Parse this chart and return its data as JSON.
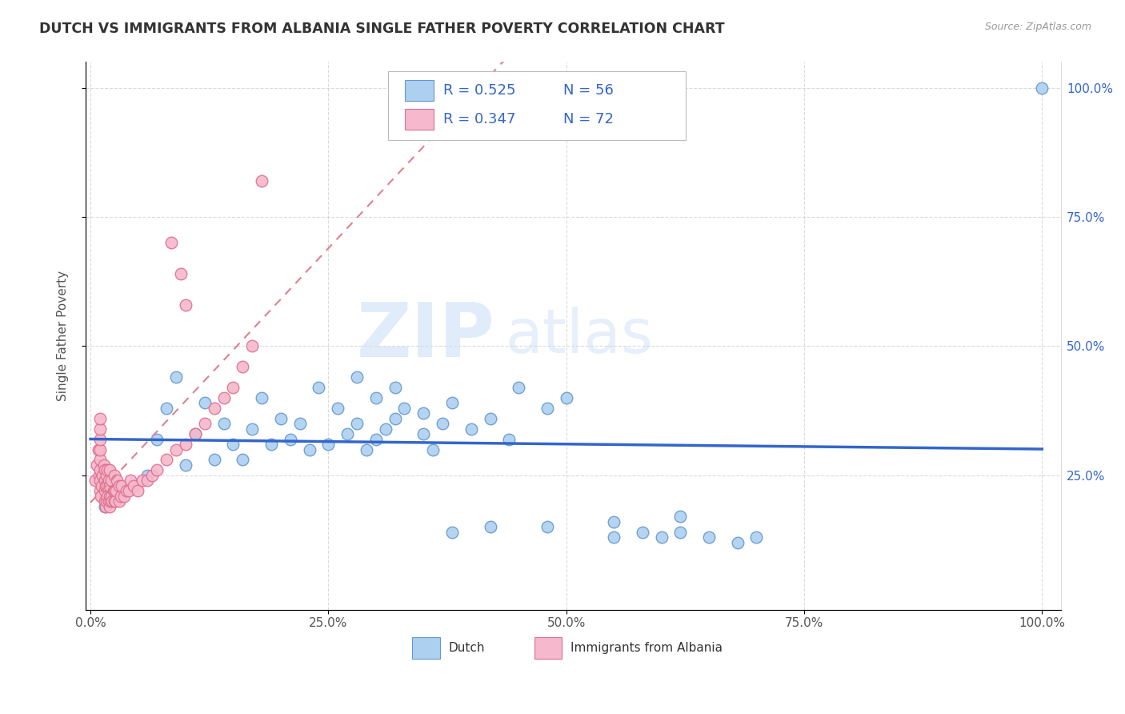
{
  "title": "DUTCH VS IMMIGRANTS FROM ALBANIA SINGLE FATHER POVERTY CORRELATION CHART",
  "source": "Source: ZipAtlas.com",
  "ylabel": "Single Father Poverty",
  "xtick_labels": [
    "0.0%",
    "25.0%",
    "50.0%",
    "75.0%",
    "100.0%"
  ],
  "xtick_positions": [
    0.0,
    0.25,
    0.5,
    0.75,
    1.0
  ],
  "ytick_labels": [
    "25.0%",
    "50.0%",
    "75.0%",
    "100.0%"
  ],
  "ytick_positions": [
    0.25,
    0.5,
    0.75,
    1.0
  ],
  "dutch_color": "#add0f0",
  "dutch_edge_color": "#6699cc",
  "albania_color": "#f5b8cc",
  "albania_edge_color": "#e07090",
  "dutch_R": 0.525,
  "dutch_N": 56,
  "albania_R": 0.347,
  "albania_N": 72,
  "legend_label_dutch": "Dutch",
  "legend_label_albania": "Immigrants from Albania",
  "watermark_zip": "ZIP",
  "watermark_atlas": "atlas",
  "dutch_line_color": "#3366cc",
  "albania_line_color": "#e08090",
  "grid_color": "#cccccc",
  "background_color": "#ffffff",
  "stat_color": "#3366cc",
  "dutch_x": [
    0.015,
    0.06,
    0.07,
    0.08,
    0.09,
    0.1,
    0.11,
    0.12,
    0.13,
    0.14,
    0.15,
    0.16,
    0.17,
    0.18,
    0.19,
    0.2,
    0.21,
    0.22,
    0.23,
    0.24,
    0.25,
    0.26,
    0.27,
    0.28,
    0.29,
    0.3,
    0.31,
    0.32,
    0.33,
    0.35,
    0.36,
    0.37,
    0.38,
    0.4,
    0.42,
    0.44,
    0.45,
    0.48,
    0.5,
    0.55,
    0.58,
    0.6,
    0.62,
    0.65,
    0.68,
    0.7,
    0.28,
    0.3,
    0.32,
    0.35,
    0.38,
    0.42,
    0.48,
    0.55,
    0.62,
    1.0
  ],
  "dutch_y": [
    0.19,
    0.25,
    0.32,
    0.38,
    0.44,
    0.27,
    0.33,
    0.39,
    0.28,
    0.35,
    0.31,
    0.28,
    0.34,
    0.4,
    0.31,
    0.36,
    0.32,
    0.35,
    0.3,
    0.42,
    0.31,
    0.38,
    0.33,
    0.35,
    0.3,
    0.32,
    0.34,
    0.36,
    0.38,
    0.33,
    0.3,
    0.35,
    0.39,
    0.34,
    0.36,
    0.32,
    0.42,
    0.38,
    0.4,
    0.13,
    0.14,
    0.13,
    0.14,
    0.13,
    0.12,
    0.13,
    0.44,
    0.4,
    0.42,
    0.37,
    0.14,
    0.15,
    0.15,
    0.16,
    0.17,
    1.0
  ],
  "albania_x": [
    0.005,
    0.007,
    0.008,
    0.009,
    0.01,
    0.01,
    0.01,
    0.01,
    0.01,
    0.01,
    0.01,
    0.01,
    0.011,
    0.012,
    0.013,
    0.014,
    0.015,
    0.015,
    0.015,
    0.015,
    0.016,
    0.016,
    0.017,
    0.017,
    0.018,
    0.018,
    0.018,
    0.019,
    0.019,
    0.02,
    0.02,
    0.02,
    0.02,
    0.021,
    0.022,
    0.022,
    0.023,
    0.024,
    0.025,
    0.025,
    0.025,
    0.026,
    0.027,
    0.028,
    0.03,
    0.03,
    0.032,
    0.033,
    0.035,
    0.038,
    0.04,
    0.042,
    0.045,
    0.05,
    0.055,
    0.06,
    0.065,
    0.07,
    0.08,
    0.09,
    0.1,
    0.11,
    0.12,
    0.13,
    0.14,
    0.15,
    0.16,
    0.17,
    0.18,
    0.1,
    0.095,
    0.085
  ],
  "albania_y": [
    0.24,
    0.27,
    0.3,
    0.25,
    0.22,
    0.24,
    0.26,
    0.28,
    0.3,
    0.32,
    0.34,
    0.36,
    0.21,
    0.23,
    0.25,
    0.27,
    0.2,
    0.22,
    0.24,
    0.26,
    0.19,
    0.23,
    0.2,
    0.25,
    0.21,
    0.23,
    0.26,
    0.2,
    0.24,
    0.19,
    0.21,
    0.23,
    0.26,
    0.2,
    0.21,
    0.24,
    0.2,
    0.22,
    0.2,
    0.22,
    0.25,
    0.2,
    0.22,
    0.24,
    0.2,
    0.23,
    0.21,
    0.23,
    0.21,
    0.22,
    0.22,
    0.24,
    0.23,
    0.22,
    0.24,
    0.24,
    0.25,
    0.26,
    0.28,
    0.3,
    0.31,
    0.33,
    0.35,
    0.38,
    0.4,
    0.42,
    0.46,
    0.5,
    0.82,
    0.58,
    0.64,
    0.7
  ]
}
